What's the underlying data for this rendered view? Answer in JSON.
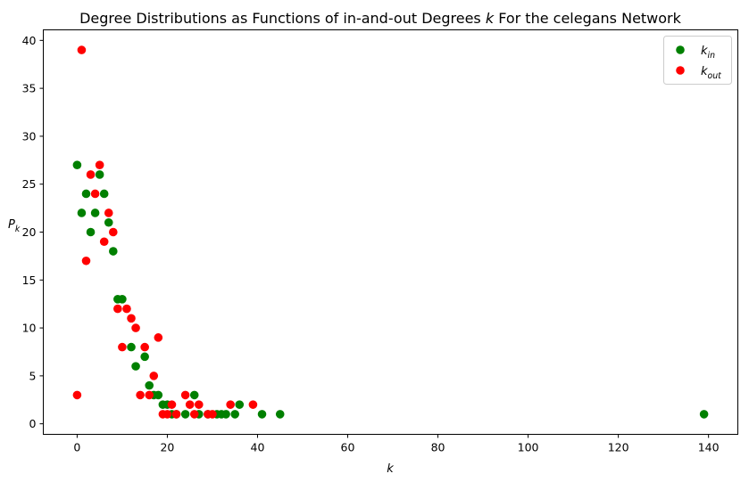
{
  "chart_data": {
    "type": "scatter",
    "title": "Degree Distributions as Functions of in-and-out Degrees k For the celegans Network",
    "xlabel": "k",
    "ylabel": "P_k",
    "xlim": [
      -7.5,
      146.5
    ],
    "ylim": [
      -1.1,
      41.1
    ],
    "xticks": [
      0,
      20,
      40,
      60,
      80,
      100,
      120,
      140
    ],
    "yticks": [
      0,
      5,
      10,
      15,
      20,
      25,
      30,
      35,
      40
    ],
    "grid": false,
    "legend_position": "top-right",
    "series": [
      {
        "name": "k_in",
        "color": "#008000",
        "points": [
          [
            0,
            27
          ],
          [
            1,
            22
          ],
          [
            2,
            24
          ],
          [
            3,
            20
          ],
          [
            4,
            22
          ],
          [
            5,
            26
          ],
          [
            6,
            24
          ],
          [
            7,
            21
          ],
          [
            8,
            18
          ],
          [
            9,
            13
          ],
          [
            10,
            13
          ],
          [
            12,
            8
          ],
          [
            13,
            6
          ],
          [
            15,
            7
          ],
          [
            16,
            4
          ],
          [
            17,
            3
          ],
          [
            18,
            3
          ],
          [
            19,
            2
          ],
          [
            20,
            2
          ],
          [
            21,
            1
          ],
          [
            22,
            1
          ],
          [
            24,
            1
          ],
          [
            26,
            3
          ],
          [
            27,
            1
          ],
          [
            29,
            1
          ],
          [
            31,
            1
          ],
          [
            32,
            1
          ],
          [
            33,
            1
          ],
          [
            35,
            1
          ],
          [
            36,
            2
          ],
          [
            41,
            1
          ],
          [
            45,
            1
          ],
          [
            139,
            1
          ]
        ]
      },
      {
        "name": "k_out",
        "color": "#ff0000",
        "points": [
          [
            0,
            3
          ],
          [
            1,
            39
          ],
          [
            2,
            17
          ],
          [
            3,
            26
          ],
          [
            4,
            24
          ],
          [
            5,
            27
          ],
          [
            6,
            19
          ],
          [
            7,
            22
          ],
          [
            8,
            20
          ],
          [
            9,
            12
          ],
          [
            10,
            8
          ],
          [
            11,
            12
          ],
          [
            12,
            11
          ],
          [
            13,
            10
          ],
          [
            14,
            3
          ],
          [
            15,
            8
          ],
          [
            16,
            3
          ],
          [
            17,
            5
          ],
          [
            18,
            9
          ],
          [
            19,
            1
          ],
          [
            20,
            1
          ],
          [
            21,
            2
          ],
          [
            22,
            1
          ],
          [
            24,
            3
          ],
          [
            25,
            2
          ],
          [
            26,
            1
          ],
          [
            27,
            2
          ],
          [
            29,
            1
          ],
          [
            30,
            1
          ],
          [
            34,
            2
          ],
          [
            39,
            2
          ]
        ]
      }
    ]
  }
}
